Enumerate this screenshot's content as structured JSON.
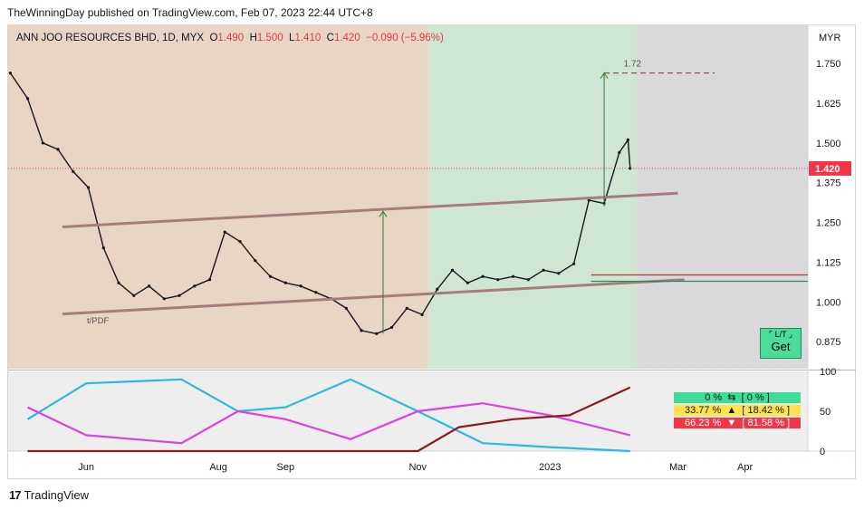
{
  "published_line": "TheWinningDay published on TradingView.com, Feb 07, 2023 22:44 UTC+8",
  "header": {
    "symbol": "ANN JOO RESOURCES BHD, 1D, MYX",
    "o_label": "O",
    "o_value": "1.490",
    "h_label": "H",
    "h_value": "1.500",
    "l_label": "L",
    "l_value": "1.410",
    "c_label": "C",
    "c_value": "1.420",
    "change": "−0.090 (−5.96%)"
  },
  "currency": "MYR",
  "footer_brand": "TradingView",
  "annotations": {
    "pdf_label": "t/PDF",
    "target_label": "1.72",
    "get_top": "⌜ L/T ⌟",
    "get_main": "Get"
  },
  "indicator_readouts": {
    "row1": "0 %  ⇆  [ 0 % ]",
    "row2": "33.77 %  ▲  [ 18.42 % ]",
    "row3": "66.23 %  ▼  [ 81.58 % ]"
  },
  "colors": {
    "up_candle": "#ffffff",
    "down_candle": "#131722",
    "last_price_bg": "#f23645",
    "trendline": "#a67c7c",
    "target_arrow": "#2e7d32",
    "support_red": "#b33a3a",
    "support_green": "#2e8b57",
    "ind_cyan": "#2ab8e6",
    "ind_magenta": "#e040e0",
    "ind_darkred": "#8b1a1a",
    "bg_tan": "#e8d5c4",
    "bg_green": "#cfe6d5",
    "bg_grey": "#d9d9dc"
  },
  "chart_data": {
    "type": "candlestick",
    "symbol": "ANN JOO RESOURCES BHD",
    "interval": "1D",
    "currency": "MYR",
    "last_price": "1.420",
    "y_ticks": [
      "1.750",
      "1.625",
      "1.500",
      "1.375",
      "1.250",
      "1.125",
      "1.000",
      "0.875"
    ],
    "y_tick_values": [
      1.75,
      1.625,
      1.5,
      1.375,
      1.25,
      1.125,
      1.0,
      0.875
    ],
    "ylim": [
      0.79,
      1.87
    ],
    "x_ticks": [
      "Jun",
      "Aug",
      "Sep",
      "Nov",
      "2023",
      "Mar",
      "Apr"
    ],
    "x_tick_dates": [
      "2022-06-01",
      "2022-08-01",
      "2022-09-01",
      "2022-11-01",
      "2023-01-01",
      "2023-03-01",
      "2023-04-01"
    ],
    "xlim": [
      "2022-04-26",
      "2023-04-30"
    ],
    "close_series": [
      [
        "2022-04-27",
        1.72
      ],
      [
        "2022-05-05",
        1.64
      ],
      [
        "2022-05-12",
        1.5
      ],
      [
        "2022-05-19",
        1.48
      ],
      [
        "2022-05-26",
        1.41
      ],
      [
        "2022-06-02",
        1.36
      ],
      [
        "2022-06-09",
        1.17
      ],
      [
        "2022-06-16",
        1.06
      ],
      [
        "2022-06-23",
        1.02
      ],
      [
        "2022-06-30",
        1.05
      ],
      [
        "2022-07-07",
        1.01
      ],
      [
        "2022-07-14",
        1.02
      ],
      [
        "2022-07-21",
        1.05
      ],
      [
        "2022-07-28",
        1.07
      ],
      [
        "2022-08-04",
        1.22
      ],
      [
        "2022-08-11",
        1.19
      ],
      [
        "2022-08-18",
        1.13
      ],
      [
        "2022-08-25",
        1.08
      ],
      [
        "2022-09-01",
        1.06
      ],
      [
        "2022-09-08",
        1.05
      ],
      [
        "2022-09-15",
        1.03
      ],
      [
        "2022-09-22",
        1.01
      ],
      [
        "2022-09-29",
        0.98
      ],
      [
        "2022-10-06",
        0.91
      ],
      [
        "2022-10-13",
        0.9
      ],
      [
        "2022-10-20",
        0.92
      ],
      [
        "2022-10-27",
        0.98
      ],
      [
        "2022-11-03",
        0.96
      ],
      [
        "2022-11-10",
        1.04
      ],
      [
        "2022-11-17",
        1.1
      ],
      [
        "2022-11-24",
        1.06
      ],
      [
        "2022-12-01",
        1.08
      ],
      [
        "2022-12-08",
        1.07
      ],
      [
        "2022-12-15",
        1.08
      ],
      [
        "2022-12-22",
        1.07
      ],
      [
        "2022-12-29",
        1.1
      ],
      [
        "2023-01-05",
        1.09
      ],
      [
        "2023-01-12",
        1.12
      ],
      [
        "2023-01-19",
        1.32
      ],
      [
        "2023-01-26",
        1.31
      ],
      [
        "2023-02-02",
        1.47
      ],
      [
        "2023-02-06",
        1.51
      ],
      [
        "2023-02-07",
        1.42
      ]
    ],
    "drawings": [
      {
        "type": "trendline",
        "from": [
          "2022-05-21",
          1.236
        ],
        "to": [
          "2023-03-01",
          1.342
        ]
      },
      {
        "type": "trendline",
        "from": [
          "2022-05-21",
          0.962
        ],
        "to": [
          "2023-03-04",
          1.07
        ]
      },
      {
        "type": "hline",
        "price": 1.085
      },
      {
        "type": "hline",
        "price": 1.065
      },
      {
        "type": "arrow",
        "date": "2022-10-16",
        "from": 0.9,
        "to": 1.285
      },
      {
        "type": "arrow",
        "date": "2023-01-26",
        "from": 1.3,
        "to": 1.72
      }
    ],
    "indicator": {
      "name": "",
      "y_ticks": [
        "100",
        "50",
        "0"
      ],
      "y_tick_values": [
        100,
        50,
        0
      ],
      "series": [
        {
          "color": "cyan",
          "values": [
            [
              "2022-05-05",
              40
            ],
            [
              "2022-06-01",
              85
            ],
            [
              "2022-07-15",
              90
            ],
            [
              "2022-08-10",
              50
            ],
            [
              "2022-09-01",
              55
            ],
            [
              "2022-10-01",
              90
            ],
            [
              "2022-11-01",
              50
            ],
            [
              "2022-12-01",
              10
            ],
            [
              "2023-01-01",
              5
            ],
            [
              "2023-02-07",
              0
            ]
          ]
        },
        {
          "color": "magenta",
          "values": [
            [
              "2022-05-05",
              55
            ],
            [
              "2022-06-01",
              20
            ],
            [
              "2022-07-15",
              10
            ],
            [
              "2022-08-10",
              50
            ],
            [
              "2022-09-01",
              40
            ],
            [
              "2022-10-01",
              15
            ],
            [
              "2022-11-01",
              50
            ],
            [
              "2022-12-01",
              60
            ],
            [
              "2023-01-01",
              45
            ],
            [
              "2023-02-07",
              20
            ]
          ]
        },
        {
          "color": "darkred",
          "values": [
            [
              "2022-05-05",
              0
            ],
            [
              "2022-11-01",
              0
            ],
            [
              "2022-11-20",
              30
            ],
            [
              "2022-12-15",
              40
            ],
            [
              "2023-01-10",
              45
            ],
            [
              "2023-02-07",
              80
            ]
          ]
        }
      ]
    }
  }
}
